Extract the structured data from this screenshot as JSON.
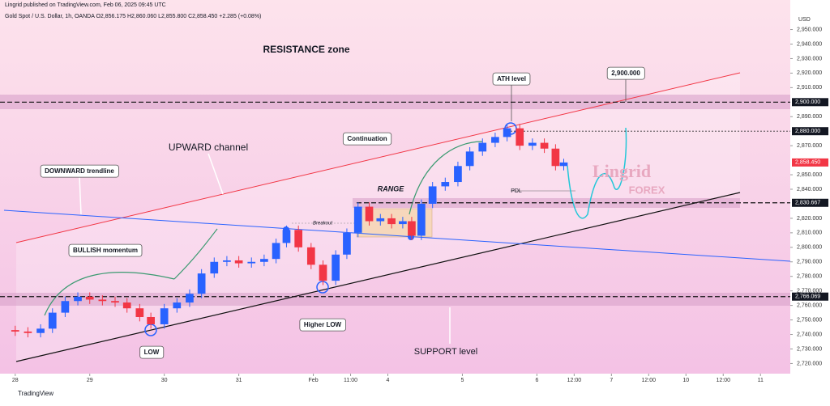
{
  "header": {
    "publisher": "Lingrid published on TradingView.com, Feb 06, 2025 09:45 UTC",
    "symbol": "Gold Spot / U.S. Dollar, 1h, OANDA O2,856.175 H2,860.060 L2,855.800 C2,858.450 +2.285 (+0.08%)"
  },
  "chart_data": {
    "type": "candlestick",
    "currency": "USD",
    "up_color": "#2962ff",
    "down_color": "#f23645",
    "grid": false,
    "x": [
      0,
      0.17,
      0.34,
      0.5,
      0.67,
      0.84,
      1,
      1.17,
      1.34,
      1.5,
      1.67,
      1.82,
      2,
      2.17,
      2.34,
      2.5,
      2.67,
      2.84,
      3,
      3.17,
      3.34,
      3.5,
      3.64,
      3.8,
      3.97,
      4.13,
      4.3,
      4.45,
      4.6,
      4.75,
      4.9,
      5.05,
      5.2,
      5.32,
      5.45,
      5.6,
      5.77,
      5.94,
      6.1,
      6.27,
      6.44,
      6.6,
      6.77,
      6.94,
      7.1,
      7.25,
      7.36
    ],
    "open": [
      2743,
      2742,
      2741,
      2744,
      2755,
      2763,
      2766,
      2764,
      2763,
      2762,
      2758,
      2752,
      2747,
      2758,
      2762,
      2768,
      2782,
      2790,
      2791,
      2789,
      2790,
      2792,
      2803,
      2812,
      2800,
      2788,
      2777,
      2795,
      2810,
      2828,
      2818,
      2820,
      2816,
      2818,
      2808,
      2830,
      2842,
      2845,
      2856,
      2866,
      2872,
      2876,
      2882,
      2870,
      2872,
      2868,
      2856
    ],
    "high": [
      2746,
      2745,
      2747,
      2758,
      2766,
      2769,
      2769,
      2767,
      2766,
      2765,
      2761,
      2755,
      2761,
      2765,
      2771,
      2785,
      2793,
      2794,
      2794,
      2793,
      2795,
      2806,
      2815,
      2815,
      2803,
      2791,
      2798,
      2813,
      2831,
      2831,
      2823,
      2823,
      2821,
      2821,
      2833,
      2845,
      2848,
      2859,
      2869,
      2875,
      2879,
      2885,
      2885,
      2875,
      2875,
      2871,
      2861
    ],
    "low": [
      2739,
      2738,
      2738,
      2741,
      2752,
      2760,
      2761,
      2760,
      2759,
      2755,
      2749,
      2744,
      2744,
      2755,
      2759,
      2765,
      2779,
      2787,
      2786,
      2786,
      2787,
      2789,
      2800,
      2797,
      2785,
      2774,
      2774,
      2792,
      2807,
      2815,
      2815,
      2813,
      2813,
      2805,
      2805,
      2827,
      2839,
      2842,
      2853,
      2863,
      2869,
      2873,
      2867,
      2867,
      2865,
      2853,
      2853
    ],
    "close": [
      2742,
      2741,
      2744,
      2755,
      2763,
      2766,
      2764,
      2763,
      2762,
      2758,
      2752,
      2747,
      2758,
      2762,
      2768,
      2782,
      2790,
      2791,
      2789,
      2790,
      2792,
      2803,
      2812,
      2800,
      2788,
      2777,
      2795,
      2810,
      2828,
      2818,
      2820,
      2816,
      2818,
      2808,
      2830,
      2842,
      2845,
      2856,
      2866,
      2872,
      2876,
      2882,
      2870,
      2872,
      2868,
      2856,
      2858.45
    ],
    "ylim": [
      2713,
      2962
    ],
    "xlim": [
      -0.15,
      10.4
    ],
    "yticks": [
      {
        "value": 2720,
        "label": "2,720.000"
      },
      {
        "value": 2730,
        "label": "2,730.000"
      },
      {
        "value": 2740,
        "label": "2,740.000"
      },
      {
        "value": 2750,
        "label": "2,750.000"
      },
      {
        "value": 2760,
        "label": "2,760.000"
      },
      {
        "value": 2770,
        "label": "2,770.000"
      },
      {
        "value": 2780,
        "label": "2,780.000"
      },
      {
        "value": 2790,
        "label": "2,790.000"
      },
      {
        "value": 2800,
        "label": "2,800.000"
      },
      {
        "value": 2810,
        "label": "2,810.000"
      },
      {
        "value": 2820,
        "label": "2,820.000"
      },
      {
        "value": 2840,
        "label": "2,840.000"
      },
      {
        "value": 2850,
        "label": "2,850.000"
      },
      {
        "value": 2870,
        "label": "2,870.000"
      },
      {
        "value": 2890,
        "label": "2,890.000"
      },
      {
        "value": 2910,
        "label": "2,910.000"
      },
      {
        "value": 2920,
        "label": "2,920.000"
      },
      {
        "value": 2930,
        "label": "2,930.000"
      },
      {
        "value": 2940,
        "label": "2,940.000"
      },
      {
        "value": 2950,
        "label": "2,950.000"
      }
    ],
    "xticks": [
      {
        "value": 0,
        "label": "28"
      },
      {
        "value": 1,
        "label": "29"
      },
      {
        "value": 2,
        "label": "30"
      },
      {
        "value": 3,
        "label": "31"
      },
      {
        "value": 4,
        "label": "Feb"
      },
      {
        "value": 4.5,
        "label": "11:00"
      },
      {
        "value": 5,
        "label": "4"
      },
      {
        "value": 6,
        "label": "5"
      },
      {
        "value": 7,
        "label": "6"
      },
      {
        "value": 7.5,
        "label": "12:00"
      },
      {
        "value": 8,
        "label": "7"
      },
      {
        "value": 8.5,
        "label": "12:00"
      },
      {
        "value": 9,
        "label": "10"
      },
      {
        "value": 9.5,
        "label": "12:00"
      },
      {
        "value": 10,
        "label": "11"
      }
    ],
    "levels": [
      {
        "value": 2900,
        "label": "2,900.000"
      },
      {
        "value": 2880,
        "label": "2,880.000"
      },
      {
        "value": 2858.45,
        "label": "2,858.450"
      },
      {
        "value": 2830.667,
        "label": "2,830.667"
      },
      {
        "value": 2766.069,
        "label": "2,766.069"
      }
    ],
    "annotations": [
      "RESISTANCE zone",
      "UPWARD channel",
      "DOWNWARD trendline",
      "BULLISH momentum",
      "Continuation",
      "RANGE",
      "Breakout",
      "ATH level",
      "2,900.000",
      "PDL",
      "LOW",
      "Higher LOW",
      "SUPPORT level"
    ],
    "watermark": [
      "Lingrid",
      "FOREX"
    ]
  },
  "footer": "TradingView"
}
